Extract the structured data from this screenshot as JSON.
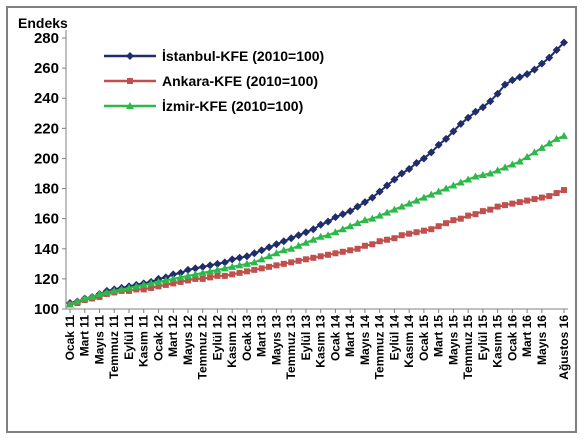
{
  "chart_data": {
    "type": "line",
    "title": "",
    "ylabel": "Endeks",
    "xlabel": "",
    "ylim": [
      100,
      280
    ],
    "yticks": [
      100,
      120,
      140,
      160,
      180,
      200,
      220,
      240,
      260,
      280
    ],
    "grid": false,
    "legend_position": "top-left",
    "x_tick_labels": [
      "Ocak 11",
      "Mart 11",
      "Mayıs 11",
      "Temmuz 11",
      "Eylül 11",
      "Kasım 11",
      "Ocak 12",
      "Mart 12",
      "Mayıs 12",
      "Temmuz 12",
      "Eylül 12",
      "Kasım 12",
      "Ocak 13",
      "Mart 13",
      "Mayıs 13",
      "Temmuz 13",
      "Eylül 13",
      "Kasım 13",
      "Ocak 14",
      "Mart 14",
      "Mayıs 14",
      "Temmuz 14",
      "Eylül 14",
      "Kasım 14",
      "Ocak 15",
      "Mart 15",
      "Mayıs 15",
      "Temmuz 15",
      "Eylül 15",
      "Kasım 15",
      "Ocak 16",
      "Mart 16",
      "Mayıs 16",
      "Ağustos 16"
    ],
    "tick_months": [
      0,
      2,
      4,
      6,
      8,
      10,
      12,
      14,
      16,
      18,
      20,
      22,
      24,
      26,
      28,
      30,
      32,
      34,
      36,
      38,
      40,
      42,
      44,
      46,
      48,
      50,
      52,
      54,
      56,
      58,
      60,
      62,
      64,
      67
    ],
    "n_points": 68,
    "series": [
      {
        "name": "İstanbul-KFE (2010=100)",
        "color": "#1f2d6b",
        "marker": "diamond",
        "values": [
          104,
          105,
          107,
          108,
          110,
          112,
          113,
          114,
          115,
          116,
          117,
          118,
          120,
          121,
          123,
          124,
          126,
          127,
          128,
          129,
          130,
          131,
          133,
          134,
          135,
          137,
          139,
          141,
          143,
          145,
          147,
          149,
          151,
          153,
          156,
          158,
          161,
          163,
          165,
          168,
          171,
          174,
          178,
          182,
          186,
          190,
          193,
          197,
          200,
          204,
          209,
          213,
          218,
          223,
          227,
          231,
          234,
          238,
          243,
          249,
          252,
          254,
          256,
          259,
          263,
          267,
          272,
          277
        ]
      },
      {
        "name": "Ankara-KFE (2010=100)",
        "color": "#c0504d",
        "marker": "square",
        "values": [
          103,
          104,
          106,
          107,
          108,
          110,
          111,
          112,
          112,
          113,
          113,
          114,
          115,
          116,
          117,
          118,
          119,
          120,
          120,
          121,
          122,
          122,
          123,
          124,
          125,
          126,
          127,
          128,
          129,
          130,
          131,
          132,
          133,
          134,
          135,
          136,
          137,
          138,
          139,
          140,
          142,
          143,
          145,
          146,
          147,
          149,
          150,
          151,
          152,
          153,
          155,
          157,
          159,
          160,
          162,
          163,
          165,
          166,
          168,
          169,
          170,
          171,
          172,
          173,
          174,
          175,
          177,
          179
        ]
      },
      {
        "name": "İzmir-KFE (2010=100)",
        "color": "#2db84a",
        "marker": "triangle",
        "values": [
          103,
          105,
          107,
          108,
          110,
          111,
          112,
          113,
          114,
          115,
          116,
          117,
          118,
          119,
          120,
          121,
          122,
          123,
          124,
          125,
          126,
          127,
          128,
          129,
          130,
          131,
          133,
          135,
          137,
          139,
          140,
          142,
          144,
          146,
          148,
          149,
          151,
          153,
          155,
          157,
          159,
          160,
          162,
          164,
          166,
          168,
          170,
          172,
          174,
          176,
          178,
          180,
          182,
          184,
          186,
          188,
          189,
          190,
          192,
          194,
          196,
          198,
          201,
          204,
          207,
          210,
          213,
          215
        ]
      }
    ]
  }
}
